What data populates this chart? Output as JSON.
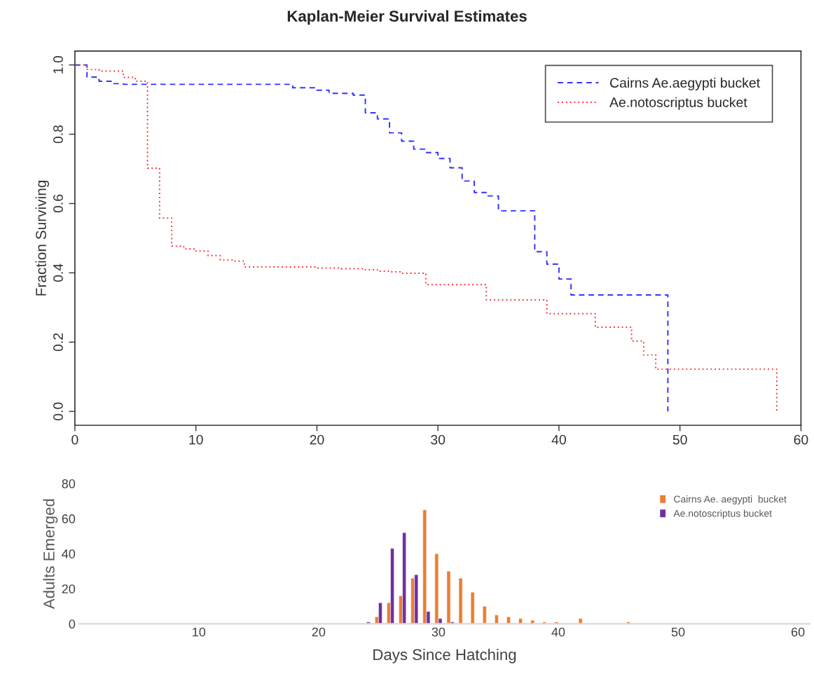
{
  "chart_data": [
    {
      "type": "step",
      "title": "Kaplan-Meier Survival Estimates",
      "ylabel": "Fraction Surviving",
      "xlim": [
        0,
        60
      ],
      "ylim": [
        -0.04,
        1.04
      ],
      "xticks": [
        0,
        10,
        20,
        30,
        40,
        50,
        60
      ],
      "yticks": [
        {
          "value": 0,
          "label": "0.0"
        },
        {
          "value": 0.2,
          "label": "0.2"
        },
        {
          "value": 0.4,
          "label": "0.4"
        },
        {
          "value": 0.6,
          "label": "0.6"
        },
        {
          "value": 0.8,
          "label": "0.8"
        },
        {
          "value": 1,
          "label": "1.0"
        }
      ],
      "legend": "top right",
      "grid": false,
      "series": [
        {
          "name": "Cairns Ae.aegypti bucket",
          "color": "#3333ff",
          "line_style": "dashed",
          "x": [
            0,
            1,
            2,
            3,
            4,
            18,
            20,
            21,
            23,
            24,
            25,
            26,
            27,
            28,
            29,
            30,
            31,
            32,
            33,
            34,
            35,
            38,
            39,
            40,
            41,
            49
          ],
          "values": [
            1.0,
            0.965,
            0.953,
            0.946,
            0.944,
            0.934,
            0.927,
            0.918,
            0.913,
            0.862,
            0.844,
            0.804,
            0.78,
            0.757,
            0.747,
            0.73,
            0.703,
            0.665,
            0.632,
            0.622,
            0.579,
            0.461,
            0.425,
            0.382,
            0.336,
            0
          ]
        },
        {
          "name": "Ae.notoscriptus bucket",
          "color": "#ff3333",
          "line_style": "dotted",
          "x": [
            0,
            1,
            2,
            4,
            5,
            6,
            7,
            8,
            9,
            10,
            11,
            12,
            13,
            14,
            20,
            22,
            24,
            25,
            26,
            27,
            29,
            34,
            39,
            43,
            46,
            47,
            48,
            58
          ],
          "values": [
            1.0,
            0.987,
            0.982,
            0.964,
            0.953,
            0.702,
            0.558,
            0.477,
            0.469,
            0.463,
            0.45,
            0.437,
            0.434,
            0.417,
            0.414,
            0.412,
            0.409,
            0.405,
            0.403,
            0.399,
            0.366,
            0.322,
            0.282,
            0.243,
            0.203,
            0.163,
            0.122,
            0
          ]
        }
      ]
    },
    {
      "type": "bar",
      "xlabel": "Days Since Hatching",
      "ylabel": "Adults Emerged",
      "xlim": [
        0,
        61
      ],
      "ylim": [
        0,
        80
      ],
      "xticks": [
        10,
        20,
        30,
        40,
        50,
        60
      ],
      "yticks": [
        0,
        20,
        40,
        60,
        80
      ],
      "legend": "top right",
      "grid": false,
      "series": [
        {
          "name": "Cairns Ae. aegypti  bucket",
          "color": "#ed7d31",
          "x": [
            25,
            26,
            27,
            28,
            29,
            30,
            31,
            32,
            33,
            34,
            35,
            36,
            37,
            38,
            39,
            40,
            42,
            46
          ],
          "values": [
            4,
            12,
            16,
            26,
            65,
            40,
            30,
            26,
            18,
            10,
            5,
            4,
            3,
            2,
            1,
            1,
            3,
            1
          ]
        },
        {
          "name": "Ae.notoscriptus bucket",
          "color": "#7030a0",
          "x": [
            24,
            25,
            26,
            27,
            28,
            29,
            30,
            31
          ],
          "values": [
            1,
            12,
            43,
            52,
            28,
            7,
            3,
            1
          ]
        }
      ]
    }
  ]
}
